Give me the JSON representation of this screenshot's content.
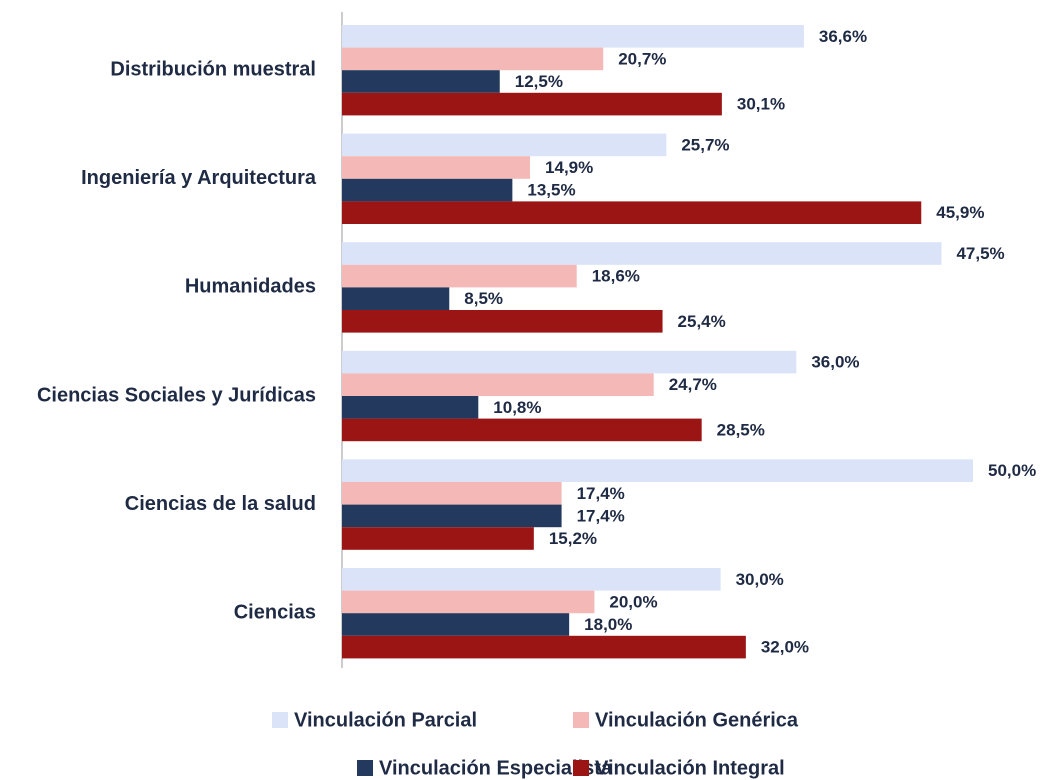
{
  "chart_data": {
    "type": "hbar",
    "categories": [
      "Distribución muestral",
      "Ingeniería y Arquitectura",
      "Humanidades",
      "Ciencias Sociales y Jurídicas",
      "Ciencias de la salud",
      "Ciencias"
    ],
    "series": [
      {
        "name": "Vinculación Parcial",
        "color": "#dae3f8",
        "values": [
          36.6,
          25.7,
          47.5,
          36.0,
          50.0,
          30.0
        ],
        "value_labels": [
          "36,6%",
          "25,7%",
          "47,5%",
          "36,0%",
          "50,0%",
          "30,0%"
        ]
      },
      {
        "name": "Vinculación Genérica",
        "color": "#f4b9b6",
        "values": [
          20.7,
          14.9,
          18.6,
          24.7,
          17.4,
          20.0
        ],
        "value_labels": [
          "20,7%",
          "14,9%",
          "18,6%",
          "24,7%",
          "17,4%",
          "20,0%"
        ]
      },
      {
        "name": "Vinculación Especialista",
        "color": "#233a5e",
        "values": [
          12.5,
          13.5,
          8.5,
          10.8,
          17.4,
          18.0
        ],
        "value_labels": [
          "12,5%",
          "13,5%",
          "8,5%",
          "10,8%",
          "17,4%",
          "18,0%"
        ]
      },
      {
        "name": "Vinculación Integral",
        "color": "#9b1515",
        "values": [
          30.1,
          45.9,
          25.4,
          28.5,
          15.2,
          32.0
        ],
        "value_labels": [
          "30,1%",
          "45,9%",
          "25,4%",
          "28,5%",
          "15,2%",
          "32,0%"
        ]
      }
    ],
    "legend": "bottom"
  }
}
